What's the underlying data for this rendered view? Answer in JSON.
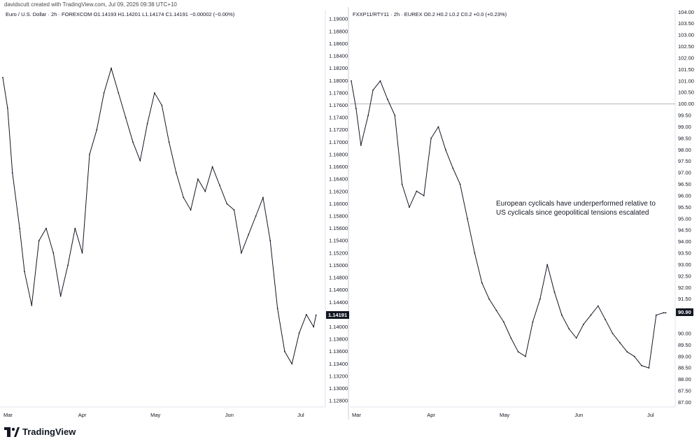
{
  "header": {
    "credit": "davidscutt created with TradingView.com, Jul 09, 2026 09:38 UTC+10"
  },
  "left_panel": {
    "legend": "Euro / U.S. Dollar · 2h · FOREXCOM  O1.14193  H1.14201  L1.14174  C1.14191  −0.00002 (−0.00%)",
    "current_price_label": "1.14191"
  },
  "right_panel": {
    "legend": "FXXP11/RTY11 · 2h · EUREX  O0.2  H0.2  L0.2  C0.2  +0.0 (+0.23%)",
    "annotation": "European cyclicals have underperformed relative to US cyclicals since geopolitical tensions escalated",
    "current_price_label": "90.90"
  },
  "branding": {
    "name": "TradingView",
    "icon": "tradingview-logo-icon"
  },
  "colors": {
    "price_line": "#131722",
    "reference_line": "#b2b5be",
    "background": "#ffffff",
    "current_tag": "#131722"
  },
  "chart_data": [
    {
      "type": "line",
      "title": "Euro / U.S. Dollar · 2h · FOREXCOM",
      "x_tick_labels": [
        "Mar",
        "Apr",
        "May",
        "Jun",
        "Jul"
      ],
      "y_tick_labels": [
        "1.19000",
        "1.18800",
        "1.18600",
        "1.18400",
        "1.18200",
        "1.18000",
        "1.17800",
        "1.17600",
        "1.17400",
        "1.17200",
        "1.17000",
        "1.16800",
        "1.16600",
        "1.16400",
        "1.16200",
        "1.16000",
        "1.15800",
        "1.15600",
        "1.15400",
        "1.15200",
        "1.15000",
        "1.14800",
        "1.14600",
        "1.14400",
        "1.14191",
        "1.14000",
        "1.13800",
        "1.13600",
        "1.13400",
        "1.13200",
        "1.13000",
        "1.12800"
      ],
      "ylim": [
        1.127,
        1.1915
      ],
      "x": [
        "2026-03-01",
        "2026-03-03",
        "2026-03-05",
        "2026-03-08",
        "2026-03-10",
        "2026-03-13",
        "2026-03-16",
        "2026-03-19",
        "2026-03-22",
        "2026-03-25",
        "2026-03-28",
        "2026-03-31",
        "2026-04-03",
        "2026-04-06",
        "2026-04-09",
        "2026-04-12",
        "2026-04-15",
        "2026-04-18",
        "2026-04-21",
        "2026-04-24",
        "2026-04-27",
        "2026-04-30",
        "2026-05-03",
        "2026-05-06",
        "2026-05-09",
        "2026-05-12",
        "2026-05-15",
        "2026-05-18",
        "2026-05-21",
        "2026-05-24",
        "2026-05-27",
        "2026-05-30",
        "2026-06-02",
        "2026-06-05",
        "2026-06-08",
        "2026-06-11",
        "2026-06-14",
        "2026-06-17",
        "2026-06-20",
        "2026-06-23",
        "2026-06-26",
        "2026-06-29",
        "2026-07-02",
        "2026-07-05",
        "2026-07-08",
        "2026-07-09"
      ],
      "values": [
        1.1805,
        1.1755,
        1.165,
        1.156,
        1.149,
        1.1435,
        1.154,
        1.156,
        1.152,
        1.145,
        1.15,
        1.156,
        1.152,
        1.168,
        1.172,
        1.178,
        1.182,
        1.178,
        1.174,
        1.17,
        1.167,
        1.173,
        1.178,
        1.176,
        1.17,
        1.165,
        1.161,
        1.159,
        1.164,
        1.162,
        1.166,
        1.163,
        1.16,
        1.159,
        1.152,
        1.155,
        1.158,
        1.161,
        1.154,
        1.143,
        1.136,
        1.134,
        1.139,
        1.142,
        1.14,
        1.14191
      ],
      "grid": false,
      "legend": "top-left"
    },
    {
      "type": "line",
      "title": "FXXP11/RTY11 · 2h · EUREX",
      "x_tick_labels": [
        "Mar",
        "Apr",
        "May",
        "Jun",
        "Jul"
      ],
      "y_tick_labels": [
        "104.00",
        "103.50",
        "103.00",
        "102.50",
        "102.00",
        "101.50",
        "101.00",
        "100.50",
        "100.00",
        "99.50",
        "99.00",
        "98.50",
        "98.00",
        "97.50",
        "97.00",
        "96.50",
        "96.00",
        "95.50",
        "95.00",
        "94.50",
        "94.00",
        "93.50",
        "93.00",
        "92.50",
        "92.00",
        "91.50",
        "91.00",
        "90.90",
        "90.00",
        "89.50",
        "89.00",
        "88.50",
        "88.00",
        "87.50",
        "87.00"
      ],
      "ylim": [
        86.8,
        104.1
      ],
      "reference_line": 100.0,
      "x": [
        "2026-03-01",
        "2026-03-03",
        "2026-03-05",
        "2026-03-08",
        "2026-03-10",
        "2026-03-13",
        "2026-03-16",
        "2026-03-19",
        "2026-03-22",
        "2026-03-25",
        "2026-03-28",
        "2026-03-31",
        "2026-04-03",
        "2026-04-06",
        "2026-04-09",
        "2026-04-12",
        "2026-04-15",
        "2026-04-18",
        "2026-04-21",
        "2026-04-24",
        "2026-04-27",
        "2026-04-30",
        "2026-05-03",
        "2026-05-06",
        "2026-05-09",
        "2026-05-12",
        "2026-05-15",
        "2026-05-18",
        "2026-05-21",
        "2026-05-24",
        "2026-05-27",
        "2026-05-30",
        "2026-06-02",
        "2026-06-05",
        "2026-06-08",
        "2026-06-11",
        "2026-06-14",
        "2026-06-17",
        "2026-06-20",
        "2026-06-23",
        "2026-06-26",
        "2026-06-29",
        "2026-07-02",
        "2026-07-05",
        "2026-07-08",
        "2026-07-09"
      ],
      "values": [
        101.0,
        99.8,
        98.2,
        99.5,
        100.6,
        101.0,
        100.2,
        99.5,
        96.5,
        95.5,
        96.2,
        96.0,
        98.5,
        99.0,
        98.0,
        97.2,
        96.5,
        95.0,
        93.5,
        92.2,
        91.5,
        91.0,
        90.5,
        89.8,
        89.2,
        89.0,
        90.5,
        91.5,
        93.0,
        91.8,
        90.8,
        90.2,
        89.8,
        90.4,
        90.8,
        91.2,
        90.6,
        90.0,
        89.6,
        89.2,
        89.0,
        88.6,
        88.5,
        90.8,
        90.9,
        90.9
      ],
      "annotations": [
        "European cyclicals have underperformed relative to US cyclicals since geopolitical tensions escalated"
      ],
      "grid": false,
      "legend": "top-left"
    }
  ]
}
